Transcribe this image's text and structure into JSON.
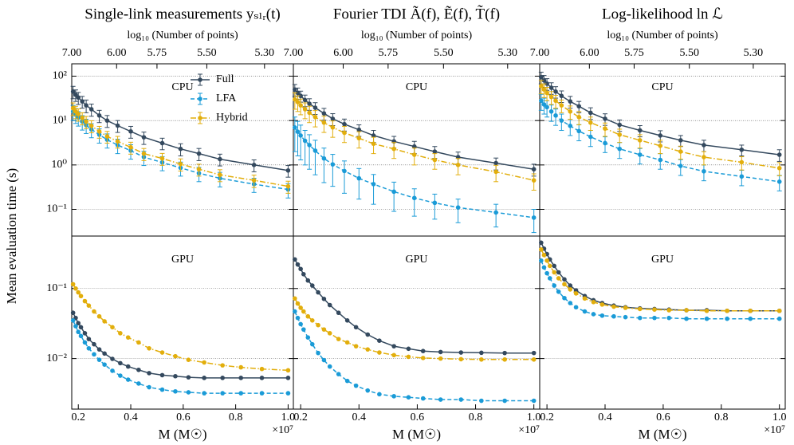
{
  "chart_data": [
    {
      "type": "line",
      "title": "Single-link measurements yₛₗᵣ(t)",
      "x2label": "log₁₀ (Number of points)",
      "label": "CPU",
      "ylabel": "Mean evaluation time (s)",
      "legend": "upper center",
      "log_y": true,
      "grid": true,
      "x2ticks": [
        {
          "value": 7,
          "label": "7.00",
          "at": 0.175
        },
        {
          "value": 6,
          "label": "6.00",
          "at": 0.346
        },
        {
          "value": 5.75,
          "label": "5.75",
          "at": 0.5
        },
        {
          "value": 5.5,
          "label": "5.50",
          "at": 0.69
        },
        {
          "value": 5.3,
          "label": "5.30",
          "at": 0.91
        }
      ],
      "xlim": [
        0.175,
        1.02
      ],
      "ylim": [
        0.025,
        190
      ],
      "yticks": [
        {
          "value": 0.1,
          "label": "10⁻¹"
        },
        {
          "value": 1,
          "label": "10⁰"
        },
        {
          "value": 10,
          "label": "10¹"
        },
        {
          "value": 100,
          "label": "10²"
        }
      ],
      "x": [
        0.18,
        0.19,
        0.2,
        0.215,
        0.23,
        0.25,
        0.28,
        0.31,
        0.35,
        0.4,
        0.45,
        0.52,
        0.59,
        0.66,
        0.74,
        0.87,
        1.0
      ],
      "series": [
        {
          "name": "Full",
          "color": "#34495e",
          "linestyle": "solid",
          "values": [
            45,
            38,
            33,
            27,
            22,
            18,
            13,
            10,
            7.7,
            5.7,
            4.2,
            3.1,
            2.3,
            1.8,
            1.35,
            1.0,
            0.75
          ],
          "errors": [
            14,
            11,
            10,
            8,
            7,
            5.5,
            4,
            3,
            2.3,
            1.7,
            1.3,
            0.9,
            0.7,
            0.55,
            0.4,
            0.3,
            0.22
          ]
        },
        {
          "name": "LFA",
          "color": "#1a9bd7",
          "linestyle": "dashed",
          "values": [
            16,
            13.6,
            11.7,
            9.5,
            7.9,
            6.3,
            4.8,
            3.7,
            2.8,
            2.1,
            1.5,
            1.14,
            0.86,
            0.65,
            0.5,
            0.37,
            0.28
          ],
          "errors": [
            6,
            5,
            4.2,
            3.4,
            2.8,
            2.2,
            1.7,
            1.3,
            1,
            0.75,
            0.53,
            0.4,
            0.3,
            0.23,
            0.18,
            0.13,
            0.1
          ]
        },
        {
          "name": "Hybrid",
          "color": "#e2ae0c",
          "linestyle": "dashdot",
          "values": [
            19,
            16,
            14,
            11.5,
            9.5,
            7.6,
            5.7,
            4.4,
            3.4,
            2.5,
            1.8,
            1.4,
            1.05,
            0.8,
            0.6,
            0.45,
            0.33
          ],
          "errors": [
            6,
            5,
            4.3,
            3.5,
            2.9,
            2.3,
            1.7,
            1.3,
            1,
            0.75,
            0.55,
            0.42,
            0.32,
            0.24,
            0.18,
            0.14,
            0.1
          ]
        }
      ]
    },
    {
      "type": "line",
      "title": "Fourier TDI Ã(f), Ẽ(f), T̃(f)",
      "x2label": "log₁₀ (Number of points)",
      "label": "CPU",
      "log_y": true,
      "grid": true,
      "x2ticks": [
        {
          "value": 7,
          "label": "7.00",
          "at": 0.175
        },
        {
          "value": 6,
          "label": "6.00",
          "at": 0.346
        },
        {
          "value": 5.75,
          "label": "5.75",
          "at": 0.5
        },
        {
          "value": 5.5,
          "label": "5.50",
          "at": 0.69
        },
        {
          "value": 5.3,
          "label": "5.30",
          "at": 0.91
        }
      ],
      "xlim": [
        0.175,
        1.02
      ],
      "ylim": [
        0.025,
        190
      ],
      "yticks": [
        0.1,
        1,
        10,
        100
      ],
      "x": [
        0.18,
        0.19,
        0.2,
        0.215,
        0.23,
        0.25,
        0.28,
        0.31,
        0.35,
        0.4,
        0.45,
        0.52,
        0.59,
        0.66,
        0.74,
        0.87,
        1.0
      ],
      "series": [
        {
          "name": "Full",
          "color": "#34495e",
          "linestyle": "solid",
          "values": [
            50,
            42,
            36,
            29,
            24,
            19.5,
            14.5,
            11,
            8.3,
            6.2,
            4.6,
            3.4,
            2.6,
            2,
            1.5,
            1.1,
            0.8
          ],
          "errors": [
            15,
            12,
            10,
            8.5,
            7,
            5.8,
            4.3,
            3.3,
            2.5,
            1.8,
            1.4,
            1,
            0.8,
            0.6,
            0.45,
            0.33,
            0.24
          ]
        },
        {
          "name": "LFA",
          "color": "#1a9bd7",
          "linestyle": "dashed",
          "values": [
            7,
            5.6,
            4.6,
            3.5,
            2.8,
            2.1,
            1.4,
            1.03,
            0.73,
            0.5,
            0.37,
            0.25,
            0.18,
            0.14,
            0.11,
            0.085,
            0.065
          ],
          "errors": [
            5,
            4,
            3.3,
            2.5,
            2,
            1.5,
            1,
            0.7,
            0.5,
            0.33,
            0.24,
            0.16,
            0.11,
            0.08,
            0.06,
            0.045,
            0.035
          ]
        },
        {
          "name": "Hybrid",
          "color": "#e2ae0c",
          "linestyle": "dashdot",
          "values": [
            30,
            26,
            22,
            18,
            15,
            12,
            9,
            7,
            5.3,
            4,
            3,
            2.3,
            1.7,
            1.3,
            1,
            0.7,
            0.45
          ],
          "errors": [
            12,
            10,
            8.5,
            7,
            6,
            4.8,
            3.6,
            2.8,
            2.1,
            1.6,
            1.2,
            0.9,
            0.7,
            0.5,
            0.4,
            0.28,
            0.18
          ]
        }
      ]
    },
    {
      "type": "line",
      "title": "Log-likelihood ln ℒ",
      "x2label": "log₁₀ (Number of points)",
      "label": "CPU",
      "log_y": true,
      "grid": true,
      "x2ticks": [
        {
          "value": 7,
          "label": "7.00",
          "at": 0.175
        },
        {
          "value": 6,
          "label": "6.00",
          "at": 0.346
        },
        {
          "value": 5.75,
          "label": "5.75",
          "at": 0.5
        },
        {
          "value": 5.5,
          "label": "5.50",
          "at": 0.69
        },
        {
          "value": 5.3,
          "label": "5.30",
          "at": 0.91
        }
      ],
      "xlim": [
        0.175,
        1.02
      ],
      "ylim": [
        0.025,
        190
      ],
      "yticks": [
        0.1,
        1,
        10,
        100
      ],
      "x": [
        0.18,
        0.19,
        0.2,
        0.215,
        0.23,
        0.25,
        0.28,
        0.31,
        0.35,
        0.4,
        0.45,
        0.52,
        0.59,
        0.66,
        0.74,
        0.87,
        1.0
      ],
      "series": [
        {
          "name": "Full",
          "color": "#34495e",
          "linestyle": "solid",
          "values": [
            95,
            80,
            68,
            55,
            45,
            36,
            27,
            21,
            15,
            11,
            8,
            6,
            4.6,
            3.6,
            2.8,
            2.2,
            1.7
          ],
          "errors": [
            28,
            24,
            20,
            16,
            13,
            10.5,
            8,
            6,
            4.4,
            3.2,
            2.3,
            1.7,
            1.3,
            1,
            0.8,
            0.6,
            0.5
          ]
        },
        {
          "name": "LFA",
          "color": "#1a9bd7",
          "linestyle": "dashed",
          "values": [
            28,
            23,
            20,
            16,
            13,
            10,
            7.6,
            5.8,
            4.3,
            3.1,
            2.3,
            1.7,
            1.3,
            0.95,
            0.72,
            0.55,
            0.42
          ],
          "errors": [
            11,
            9,
            8,
            6.4,
            5.2,
            4,
            3,
            2.3,
            1.7,
            1.2,
            0.9,
            0.65,
            0.5,
            0.37,
            0.28,
            0.21,
            0.16
          ]
        },
        {
          "name": "Hybrid",
          "color": "#e2ae0c",
          "linestyle": "dashdot",
          "values": [
            60,
            50,
            42,
            34,
            28,
            22,
            16,
            12,
            9,
            6.6,
            4.8,
            3.6,
            2.7,
            2,
            1.5,
            1.15,
            0.85
          ],
          "errors": [
            20,
            17,
            14,
            11,
            9,
            7,
            5.3,
            4,
            3,
            2.2,
            1.6,
            1.2,
            0.9,
            0.65,
            0.5,
            0.38,
            0.28
          ]
        }
      ]
    },
    {
      "type": "line",
      "label": "GPU",
      "xlabel": "M (M☉)",
      "x_multiplier": "×10⁷",
      "log_y": true,
      "grid": true,
      "xlim": [
        0.175,
        1.02
      ],
      "xticks": [
        0.2,
        0.4,
        0.6,
        0.8,
        {
          "value": 1,
          "label": "1.0"
        }
      ],
      "ylim": [
        0.0019,
        0.56
      ],
      "yticks": [
        {
          "value": 0.01,
          "label": "10⁻²"
        },
        {
          "value": 0.1,
          "label": "10⁻¹"
        }
      ],
      "x": [
        0.18,
        0.19,
        0.2,
        0.21,
        0.225,
        0.24,
        0.26,
        0.28,
        0.3,
        0.33,
        0.36,
        0.39,
        0.43,
        0.47,
        0.52,
        0.57,
        0.62,
        0.68,
        0.75,
        0.82,
        0.9,
        1.0
      ],
      "series": [
        {
          "name": "Full",
          "color": "#34495e",
          "linestyle": "solid",
          "values": [
            0.045,
            0.038,
            0.032,
            0.028,
            0.023,
            0.019,
            0.016,
            0.0135,
            0.0118,
            0.0099,
            0.0086,
            0.0077,
            0.0069,
            0.0062,
            0.0058,
            0.0056,
            0.0054,
            0.0053,
            0.0053,
            0.0053,
            0.0053,
            0.0053
          ]
        },
        {
          "name": "LFA",
          "color": "#1a9bd7",
          "linestyle": "dashed",
          "values": [
            0.035,
            0.029,
            0.024,
            0.021,
            0.017,
            0.014,
            0.0115,
            0.0096,
            0.0082,
            0.0067,
            0.0057,
            0.005,
            0.0044,
            0.0039,
            0.0036,
            0.0034,
            0.0033,
            0.0032,
            0.0032,
            0.0032,
            0.0032,
            0.0032
          ]
        },
        {
          "name": "Hybrid",
          "color": "#e2ae0c",
          "linestyle": "dashdot",
          "values": [
            0.115,
            0.1,
            0.088,
            0.078,
            0.066,
            0.057,
            0.047,
            0.04,
            0.034,
            0.028,
            0.023,
            0.02,
            0.017,
            0.014,
            0.0122,
            0.0108,
            0.0096,
            0.0088,
            0.008,
            0.0075,
            0.0071,
            0.0068
          ]
        }
      ]
    },
    {
      "type": "line",
      "label": "GPU",
      "xlabel": "M (M☉)",
      "x_multiplier": "×10⁷",
      "log_y": true,
      "grid": true,
      "xlim": [
        0.175,
        1.02
      ],
      "xticks": [
        0.2,
        0.4,
        0.6,
        0.8,
        {
          "value": 1,
          "label": "1.0"
        }
      ],
      "ylim": [
        0.0019,
        0.56
      ],
      "yticks": [
        0.01,
        0.1
      ],
      "x": [
        0.18,
        0.19,
        0.2,
        0.21,
        0.225,
        0.24,
        0.26,
        0.28,
        0.3,
        0.33,
        0.36,
        0.39,
        0.43,
        0.47,
        0.52,
        0.57,
        0.62,
        0.68,
        0.75,
        0.82,
        0.9,
        1.0
      ],
      "series": [
        {
          "name": "Full",
          "color": "#34495e",
          "linestyle": "solid",
          "values": [
            0.26,
            0.22,
            0.19,
            0.16,
            0.13,
            0.11,
            0.088,
            0.071,
            0.058,
            0.045,
            0.035,
            0.028,
            0.022,
            0.018,
            0.015,
            0.0138,
            0.0128,
            0.0124,
            0.0122,
            0.0121,
            0.012,
            0.012
          ]
        },
        {
          "name": "LFA",
          "color": "#1a9bd7",
          "linestyle": "dashed",
          "values": [
            0.047,
            0.038,
            0.031,
            0.026,
            0.02,
            0.016,
            0.012,
            0.0095,
            0.0077,
            0.006,
            0.0048,
            0.0041,
            0.0035,
            0.0031,
            0.0029,
            0.0028,
            0.0027,
            0.0026,
            0.0026,
            0.0025,
            0.0025,
            0.0025
          ]
        },
        {
          "name": "Hybrid",
          "color": "#e2ae0c",
          "linestyle": "dashdot",
          "values": [
            0.072,
            0.061,
            0.053,
            0.047,
            0.04,
            0.035,
            0.03,
            0.026,
            0.023,
            0.019,
            0.017,
            0.015,
            0.0135,
            0.0122,
            0.0112,
            0.0106,
            0.0102,
            0.01,
            0.0098,
            0.0097,
            0.0097,
            0.0097
          ]
        }
      ]
    },
    {
      "type": "line",
      "label": "GPU",
      "xlabel": "M (M☉)",
      "x_multiplier": "×10⁷",
      "log_y": true,
      "grid": true,
      "xlim": [
        0.175,
        1.02
      ],
      "xticks": [
        0.2,
        0.4,
        0.6,
        0.8,
        {
          "value": 1,
          "label": "1.0"
        }
      ],
      "ylim": [
        0.0019,
        0.56
      ],
      "yticks": [
        0.01,
        0.1
      ],
      "x": [
        0.18,
        0.19,
        0.2,
        0.21,
        0.225,
        0.24,
        0.26,
        0.28,
        0.3,
        0.33,
        0.36,
        0.39,
        0.43,
        0.47,
        0.52,
        0.57,
        0.62,
        0.68,
        0.75,
        0.82,
        0.9,
        1.0
      ],
      "series": [
        {
          "name": "Full",
          "color": "#34495e",
          "linestyle": "solid",
          "values": [
            0.45,
            0.37,
            0.31,
            0.26,
            0.21,
            0.17,
            0.135,
            0.11,
            0.094,
            0.078,
            0.068,
            0.062,
            0.057,
            0.054,
            0.052,
            0.051,
            0.05,
            0.049,
            0.049,
            0.048,
            0.048,
            0.048
          ]
        },
        {
          "name": "LFA",
          "color": "#1a9bd7",
          "linestyle": "dashed",
          "values": [
            0.25,
            0.2,
            0.165,
            0.14,
            0.11,
            0.09,
            0.073,
            0.062,
            0.054,
            0.047,
            0.043,
            0.041,
            0.04,
            0.039,
            0.038,
            0.038,
            0.038,
            0.037,
            0.037,
            0.037,
            0.037,
            0.037
          ]
        },
        {
          "name": "Hybrid",
          "color": "#e2ae0c",
          "linestyle": "dashdot",
          "values": [
            0.36,
            0.3,
            0.25,
            0.21,
            0.17,
            0.14,
            0.115,
            0.097,
            0.085,
            0.072,
            0.064,
            0.059,
            0.055,
            0.053,
            0.051,
            0.05,
            0.049,
            0.049,
            0.048,
            0.048,
            0.048,
            0.048
          ]
        }
      ]
    }
  ]
}
